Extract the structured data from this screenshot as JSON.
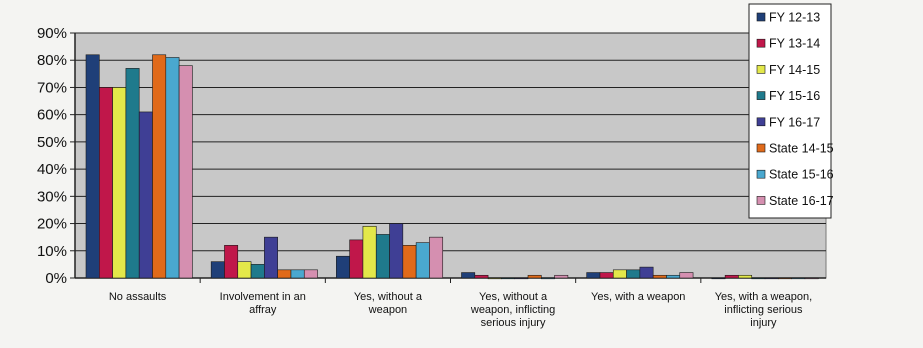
{
  "chart_data": {
    "type": "bar",
    "categories": [
      [
        "No assaults"
      ],
      [
        "Involvement in an",
        "affray"
      ],
      [
        "Yes, without a",
        "weapon"
      ],
      [
        "Yes, without a",
        "weapon, inflicting",
        "serious injury"
      ],
      [
        "Yes, with a weapon"
      ],
      [
        "Yes, with a weapon,",
        "inflicting serious",
        "injury"
      ]
    ],
    "series": [
      {
        "name": "FY 12-13",
        "color": "#1f3f78",
        "values": [
          82,
          6,
          8,
          2,
          2,
          0
        ]
      },
      {
        "name": "FY 13-14",
        "color": "#c0174a",
        "values": [
          70,
          12,
          14,
          1,
          2,
          1
        ]
      },
      {
        "name": "FY 14-15",
        "color": "#e3e84a",
        "values": [
          70,
          6,
          19,
          0,
          3,
          1
        ]
      },
      {
        "name": "FY 15-16",
        "color": "#1f7a8c",
        "values": [
          77,
          5,
          16,
          0,
          3,
          0
        ]
      },
      {
        "name": "FY 16-17",
        "color": "#3f3f95",
        "values": [
          61,
          15,
          20,
          0,
          4,
          0
        ]
      },
      {
        "name": "State 14-15",
        "color": "#e06a1a",
        "values": [
          82,
          3,
          12,
          1,
          1,
          0
        ]
      },
      {
        "name": "State 15-16",
        "color": "#4aa8cf",
        "values": [
          81,
          3,
          13,
          0,
          1,
          0
        ]
      },
      {
        "name": "State 16-17",
        "color": "#d58fb0",
        "values": [
          78,
          3,
          15,
          1,
          2,
          0
        ]
      }
    ],
    "ylim": [
      0,
      90
    ],
    "yticks": [
      "0%",
      "10%",
      "20%",
      "30%",
      "40%",
      "50%",
      "60%",
      "70%",
      "80%",
      "90%"
    ],
    "grid": true,
    "legend": "right"
  }
}
